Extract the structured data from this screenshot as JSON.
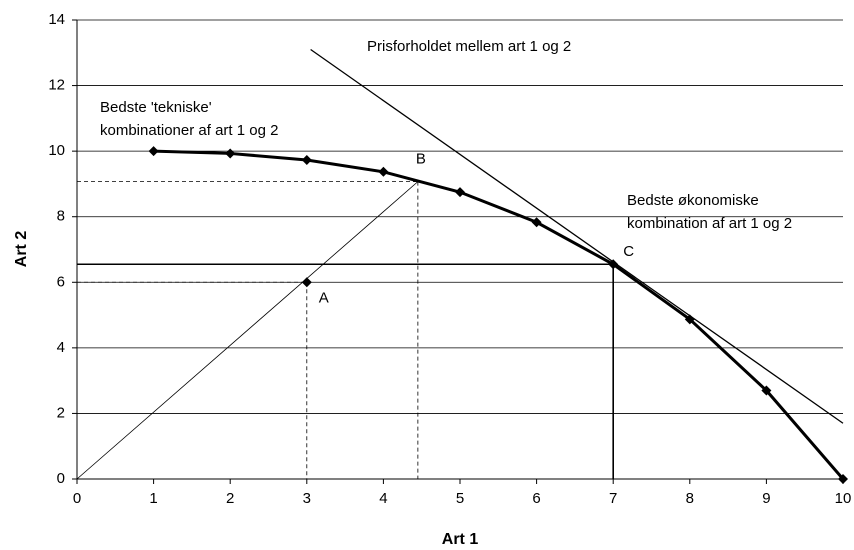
{
  "chart_data": {
    "type": "line",
    "x_label": "Art 1",
    "y_label": "Art 2",
    "x": [
      1,
      2,
      3,
      4,
      5,
      6,
      7,
      8,
      9,
      10
    ],
    "series": [
      {
        "color": "#000000",
        "values": [
          10,
          9.93,
          9.73,
          9.37,
          8.75,
          7.83,
          6.55,
          4.87,
          2.7,
          0
        ]
      }
    ],
    "xlim": [
      0,
      10
    ],
    "xticks": [
      0,
      1,
      2,
      3,
      4,
      5,
      6,
      7,
      8,
      9,
      10
    ],
    "ylim": [
      0,
      14
    ],
    "yticks": [
      0,
      2,
      4,
      6,
      8,
      10,
      12,
      14
    ],
    "grid": true,
    "points": [
      {
        "label": "A",
        "x": 3,
        "y": 6,
        "guides": "dashed",
        "marker": true
      },
      {
        "label": "B",
        "x": 4.45,
        "y": 9.07,
        "guides": "dashed",
        "ray": true
      },
      {
        "label": "C",
        "x": 7,
        "y": 6.55,
        "guides": "solid"
      }
    ],
    "price_line": {
      "x": [
        3.05,
        10
      ],
      "y": [
        13.1,
        1.7
      ]
    },
    "annotations": [
      {
        "lines": [
          "Prisforholdet mellem art 1 og 2"
        ]
      },
      {
        "lines": [
          "Bedste 'tekniske'",
          "kombinationer af art 1 og 2"
        ]
      },
      {
        "lines": [
          "Bedste økonomiske",
          "kombination af art 1 og 2"
        ]
      }
    ]
  }
}
